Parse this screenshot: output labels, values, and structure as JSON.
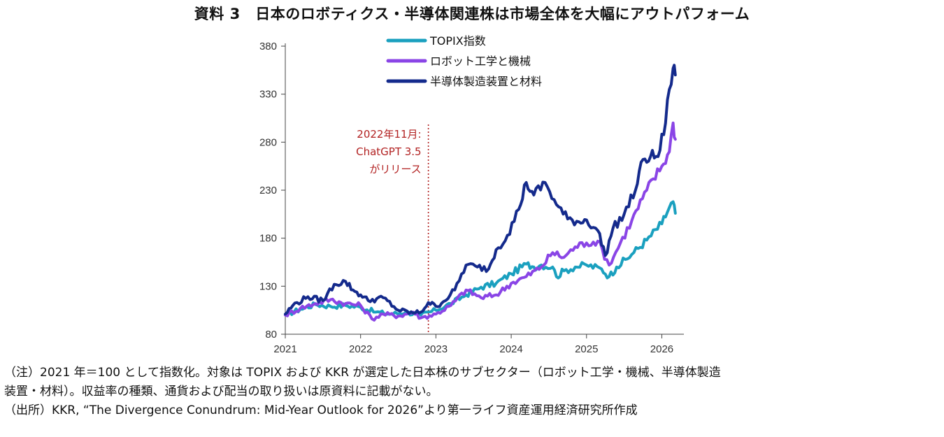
{
  "title": "資料 3　日本のロボティクス・半導体関連株は市場全体を大幅にアウトパフォーム",
  "notes": {
    "line1": "（注）2021 年＝100 として指数化。対象は TOPIX および KKR が選定した日本株のサブセクター（ロボット工学・機械、半導体製造",
    "line2": "装置・材料）。収益率の種類、通貨および配当の取り扱いは原資料に記載がない。",
    "source": "（出所）KKR, “The Divergence Conundrum: Mid-Year Outlook for 2026”より第一ライフ資産運用経済研究所作成"
  },
  "chart_data": {
    "type": "line",
    "xlim": [
      2021,
      2026.2
    ],
    "ylim": [
      80,
      380
    ],
    "x_ticks": [
      2021,
      2022,
      2023,
      2024,
      2025,
      2026
    ],
    "y_ticks": [
      80,
      130,
      180,
      230,
      280,
      330,
      380
    ],
    "grid": false,
    "legend_position": "top-left",
    "annotation": {
      "x": 2022.9,
      "lines": [
        "2022年11月:",
        "ChatGPT 3.5",
        "がリリース"
      ],
      "color": "#b22222"
    },
    "series": [
      {
        "name": "TOPIX指数",
        "color": "#1aa0bf",
        "points": [
          [
            2021.0,
            100
          ],
          [
            2021.2,
            106
          ],
          [
            2021.4,
            111
          ],
          [
            2021.6,
            109
          ],
          [
            2021.8,
            110
          ],
          [
            2022.0,
            108
          ],
          [
            2022.2,
            103
          ],
          [
            2022.4,
            101
          ],
          [
            2022.6,
            103
          ],
          [
            2022.8,
            100
          ],
          [
            2023.0,
            105
          ],
          [
            2023.2,
            112
          ],
          [
            2023.4,
            121
          ],
          [
            2023.6,
            129
          ],
          [
            2023.8,
            133
          ],
          [
            2024.0,
            143
          ],
          [
            2024.2,
            153
          ],
          [
            2024.3,
            150
          ],
          [
            2024.4,
            152
          ],
          [
            2024.55,
            150
          ],
          [
            2024.6,
            140
          ],
          [
            2024.7,
            146
          ],
          [
            2024.85,
            150
          ],
          [
            2025.0,
            152
          ],
          [
            2025.2,
            148
          ],
          [
            2025.3,
            140
          ],
          [
            2025.4,
            150
          ],
          [
            2025.6,
            163
          ],
          [
            2025.8,
            178
          ],
          [
            2026.0,
            195
          ],
          [
            2026.1,
            212
          ],
          [
            2026.15,
            218
          ],
          [
            2026.18,
            206
          ]
        ]
      },
      {
        "name": "ロボット工学と機械",
        "color": "#8a45e6",
        "points": [
          [
            2021.0,
            100
          ],
          [
            2021.2,
            107
          ],
          [
            2021.4,
            112
          ],
          [
            2021.6,
            116
          ],
          [
            2021.8,
            112
          ],
          [
            2022.0,
            110
          ],
          [
            2022.15,
            96
          ],
          [
            2022.3,
            101
          ],
          [
            2022.5,
            99
          ],
          [
            2022.7,
            103
          ],
          [
            2022.8,
            97
          ],
          [
            2023.0,
            101
          ],
          [
            2023.2,
            110
          ],
          [
            2023.4,
            126
          ],
          [
            2023.6,
            118
          ],
          [
            2023.8,
            121
          ],
          [
            2024.0,
            133
          ],
          [
            2024.2,
            140
          ],
          [
            2024.4,
            150
          ],
          [
            2024.55,
            165
          ],
          [
            2024.7,
            160
          ],
          [
            2024.85,
            171
          ],
          [
            2025.0,
            175
          ],
          [
            2025.15,
            177
          ],
          [
            2025.3,
            152
          ],
          [
            2025.45,
            175
          ],
          [
            2025.6,
            198
          ],
          [
            2025.8,
            230
          ],
          [
            2026.0,
            255
          ],
          [
            2026.1,
            270
          ],
          [
            2026.15,
            300
          ],
          [
            2026.18,
            283
          ]
        ]
      },
      {
        "name": "半導体製造装置と材料",
        "color": "#142a8c",
        "points": [
          [
            2021.0,
            101
          ],
          [
            2021.1,
            110
          ],
          [
            2021.3,
            119
          ],
          [
            2021.5,
            115
          ],
          [
            2021.65,
            132
          ],
          [
            2021.8,
            135
          ],
          [
            2021.9,
            126
          ],
          [
            2022.0,
            121
          ],
          [
            2022.1,
            115
          ],
          [
            2022.3,
            118
          ],
          [
            2022.5,
            105
          ],
          [
            2022.7,
            102
          ],
          [
            2022.8,
            103
          ],
          [
            2022.9,
            113
          ],
          [
            2023.0,
            109
          ],
          [
            2023.1,
            114
          ],
          [
            2023.25,
            126
          ],
          [
            2023.4,
            152
          ],
          [
            2023.55,
            150
          ],
          [
            2023.7,
            148
          ],
          [
            2023.8,
            168
          ],
          [
            2023.95,
            183
          ],
          [
            2024.1,
            210
          ],
          [
            2024.2,
            238
          ],
          [
            2024.3,
            225
          ],
          [
            2024.45,
            238
          ],
          [
            2024.6,
            215
          ],
          [
            2024.75,
            200
          ],
          [
            2024.9,
            197
          ],
          [
            2025.0,
            199
          ],
          [
            2025.15,
            188
          ],
          [
            2025.25,
            162
          ],
          [
            2025.35,
            190
          ],
          [
            2025.5,
            205
          ],
          [
            2025.65,
            230
          ],
          [
            2025.75,
            262
          ],
          [
            2025.85,
            265
          ],
          [
            2025.95,
            265
          ],
          [
            2026.05,
            300
          ],
          [
            2026.1,
            335
          ],
          [
            2026.15,
            357
          ],
          [
            2026.18,
            350
          ]
        ]
      }
    ]
  }
}
